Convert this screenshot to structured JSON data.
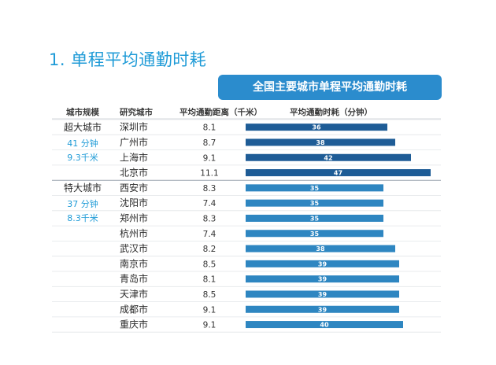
{
  "page_title": "1. 单程平均通勤时耗",
  "chart_data": {
    "type": "table",
    "title": "全国主要城市单程平均通勤时耗",
    "columns": [
      "城市规模",
      "研究城市",
      "平均通勤距离（千米）",
      "平均通勤时耗（分钟）"
    ],
    "tiers": [
      {
        "name": "超大城市",
        "avg_time": "41 分钟",
        "avg_distance": "9.3千米",
        "color": "#1e5c96"
      },
      {
        "name": "特大城市",
        "avg_time": "37 分钟",
        "avg_distance": "8.3千米",
        "color": "#2e86c1"
      }
    ],
    "rows": [
      {
        "tier": 0,
        "city": "深圳市",
        "distance": "8.1",
        "time": 36
      },
      {
        "tier": 0,
        "city": "广州市",
        "distance": "8.7",
        "time": 38
      },
      {
        "tier": 0,
        "city": "上海市",
        "distance": "9.1",
        "time": 42
      },
      {
        "tier": 0,
        "city": "北京市",
        "distance": "11.1",
        "time": 47
      },
      {
        "tier": 1,
        "city": "西安市",
        "distance": "8.3",
        "time": 35
      },
      {
        "tier": 1,
        "city": "沈阳市",
        "distance": "7.4",
        "time": 35
      },
      {
        "tier": 1,
        "city": "郑州市",
        "distance": "8.3",
        "time": 35
      },
      {
        "tier": 1,
        "city": "杭州市",
        "distance": "7.4",
        "time": 35
      },
      {
        "tier": 1,
        "city": "武汉市",
        "distance": "8.2",
        "time": 38
      },
      {
        "tier": 1,
        "city": "南京市",
        "distance": "8.5",
        "time": 39
      },
      {
        "tier": 1,
        "city": "青岛市",
        "distance": "8.1",
        "time": 39
      },
      {
        "tier": 1,
        "city": "天津市",
        "distance": "8.5",
        "time": 39
      },
      {
        "tier": 1,
        "city": "成都市",
        "distance": "9.1",
        "time": 39
      },
      {
        "tier": 1,
        "city": "重庆市",
        "distance": "9.1",
        "time": 40
      }
    ]
  }
}
